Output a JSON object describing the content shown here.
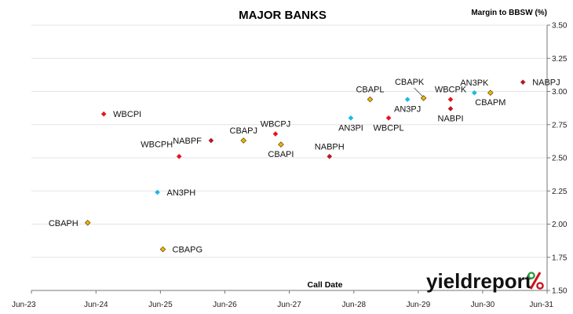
{
  "chart_data": {
    "type": "scatter",
    "title": "MAJOR BANKS",
    "xlabel": "Call Date",
    "ylabel": "Margin to BBSW (%)",
    "xlim": [
      "Jun-23",
      "Jun-31"
    ],
    "ylim": [
      1.5,
      3.5
    ],
    "x_ticks": [
      "Jun-23",
      "Jun-24",
      "Jun-25",
      "Jun-26",
      "Jun-27",
      "Jun-28",
      "Jun-29",
      "Jun-30",
      "Jun-31"
    ],
    "y_ticks": [
      "1.50",
      "1.75",
      "2.00",
      "2.25",
      "2.50",
      "2.75",
      "3.00",
      "3.25",
      "3.50"
    ],
    "grid": "horizontal",
    "points": [
      {
        "label": "CBAPH",
        "date": "2024-04-15",
        "y": 2.01,
        "issuer": "CBA",
        "label_side": "left"
      },
      {
        "label": "CBAPG",
        "date": "2025-06-15",
        "y": 1.81,
        "issuer": "CBA",
        "label_side": "right"
      },
      {
        "label": "AN3PH",
        "date": "2025-05-15",
        "y": 2.24,
        "issuer": "ANZ",
        "label_side": "right"
      },
      {
        "label": "WBCPI",
        "date": "2024-07-15",
        "y": 2.83,
        "issuer": "WBC",
        "label_side": "right"
      },
      {
        "label": "WBCPH",
        "date": "2025-09-15",
        "y": 2.51,
        "issuer": "WBC",
        "label_side": "above-left"
      },
      {
        "label": "NABPF",
        "date": "2026-03-15",
        "y": 2.63,
        "issuer": "NAB",
        "label_side": "left"
      },
      {
        "label": "CBAPJ",
        "date": "2026-09-15",
        "y": 2.63,
        "issuer": "CBA",
        "label_side": "above"
      },
      {
        "label": "WBCPJ",
        "date": "2027-03-15",
        "y": 2.68,
        "issuer": "WBC",
        "label_side": "above"
      },
      {
        "label": "CBAPI",
        "date": "2027-04-15",
        "y": 2.6,
        "issuer": "CBA",
        "label_side": "below"
      },
      {
        "label": "NABPH",
        "date": "2028-01-15",
        "y": 2.51,
        "issuer": "NAB",
        "label_side": "above"
      },
      {
        "label": "AN3PI",
        "date": "2028-05-15",
        "y": 2.8,
        "issuer": "ANZ",
        "label_side": "below"
      },
      {
        "label": "CBAPL",
        "date": "2028-09-01",
        "y": 2.94,
        "issuer": "CBA",
        "label_side": "above"
      },
      {
        "label": "WBCPL",
        "date": "2028-12-15",
        "y": 2.8,
        "issuer": "WBC",
        "label_side": "below"
      },
      {
        "label": "AN3PJ",
        "date": "2029-04-01",
        "y": 2.94,
        "issuer": "ANZ",
        "label_side": "below"
      },
      {
        "label": "CBAPK",
        "date": "2029-07-01",
        "y": 2.95,
        "issuer": "CBA",
        "label_side": "above-leader"
      },
      {
        "label": "WBCPK",
        "date": "2029-12-01",
        "y": 2.94,
        "issuer": "WBC",
        "label_side": "above"
      },
      {
        "label": "NABPI",
        "date": "2029-12-01",
        "y": 2.87,
        "issuer": "NAB",
        "label_side": "below"
      },
      {
        "label": "AN3PK",
        "date": "2030-04-15",
        "y": 2.99,
        "issuer": "ANZ",
        "label_side": "above"
      },
      {
        "label": "CBAPM",
        "date": "2030-07-15",
        "y": 2.99,
        "issuer": "CBA",
        "label_side": "below"
      },
      {
        "label": "NABPJ",
        "date": "2031-01-15",
        "y": 3.07,
        "issuer": "NAB",
        "label_side": "right"
      }
    ],
    "issuer_colors": {
      "CBA": "#f0b400",
      "ANZ": "#1cb8e8",
      "WBC": "#e8141c",
      "NAB": "#b01c24"
    }
  },
  "brand": {
    "text": "yieldreport",
    "pct": "%",
    "pct_color_top": "#c8141c",
    "pct_color_bottom": "#2a9a3a"
  }
}
